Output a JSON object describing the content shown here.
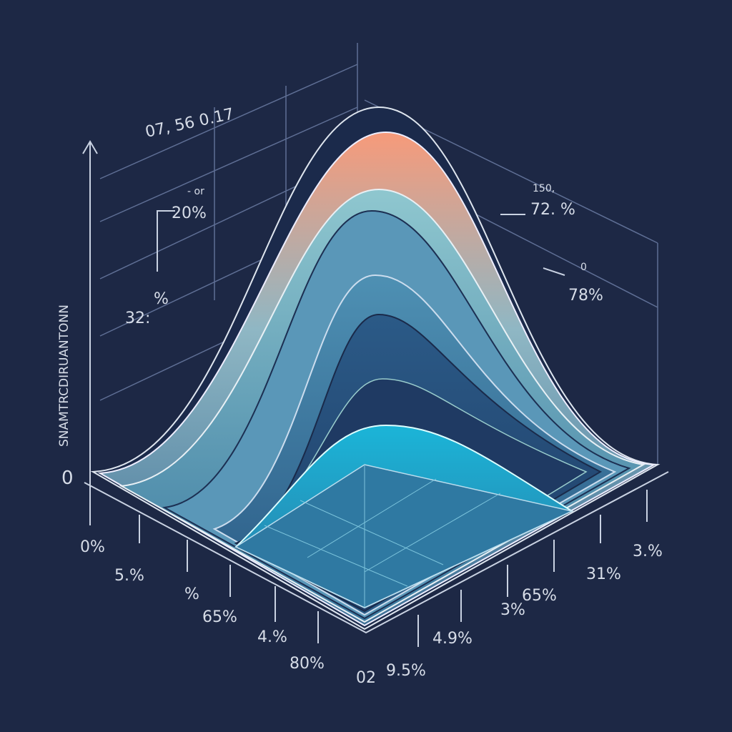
{
  "annotations": {
    "top": "07, 56 0.17",
    "left_upper_small": "- or",
    "left_upper": "20%",
    "left_lower": "32:",
    "left_lower_pct": "%",
    "right_upper_small": "150,",
    "right_upper": "72. %",
    "right_lower_small": "0",
    "right_lower": "78%"
  },
  "axis_title": "SNAMTRCDIRUANTONN",
  "origin": "0",
  "left_axis_labels": [
    "0%",
    "5.%",
    "%",
    "65%",
    "4.%",
    "80%"
  ],
  "right_axis_labels": [
    "02",
    "9.5%",
    "4.9%",
    "3%",
    "65%",
    "31%",
    "3.%"
  ]
}
